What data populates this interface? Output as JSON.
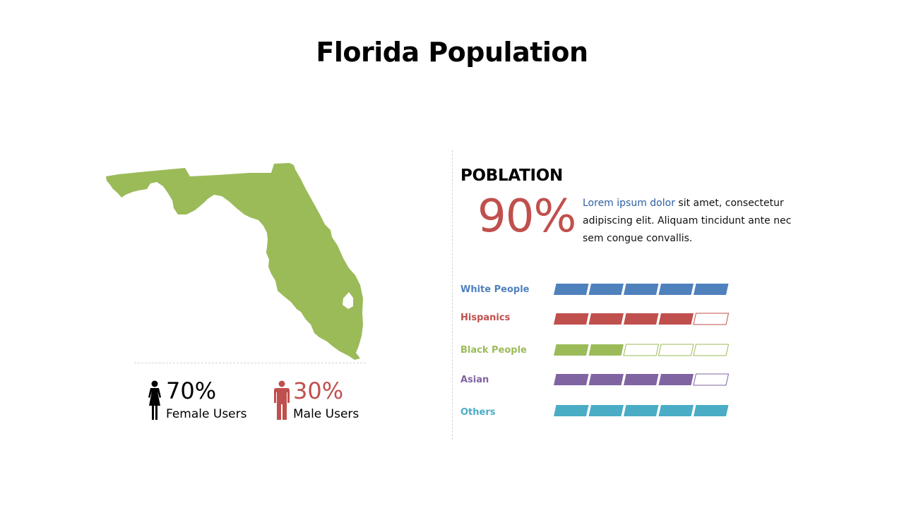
{
  "title": "Florida Population",
  "map": {
    "name": "florida-map",
    "color": "#9bbb59"
  },
  "stats": [
    {
      "percent": "70%",
      "label": "Female Users",
      "color": "#000000",
      "icon": "female-icon"
    },
    {
      "percent": "30%",
      "label": "Male Users",
      "color": "#c0504d",
      "icon": "male-icon"
    }
  ],
  "population": {
    "heading": "POBLATION",
    "percent": "90%",
    "percent_color": "#c0504d",
    "description_highlight": "Lorem ipsum dolor",
    "description_rest": " sit amet, consectetur adipiscing elit. Aliquam tincidunt ante nec sem congue convallis."
  },
  "categories": [
    {
      "label": "White People",
      "filled": 5,
      "total": 5,
      "color": "#4f81bd"
    },
    {
      "label": "Hispanics",
      "filled": 4,
      "total": 5,
      "color": "#c0504d"
    },
    {
      "label": "Black People",
      "filled": 2,
      "total": 5,
      "color": "#9bbb59"
    },
    {
      "label": "Asian",
      "filled": 4,
      "total": 5,
      "color": "#8064a2"
    },
    {
      "label": "Others",
      "filled": 5,
      "total": 5,
      "color": "#4bacc6"
    }
  ]
}
